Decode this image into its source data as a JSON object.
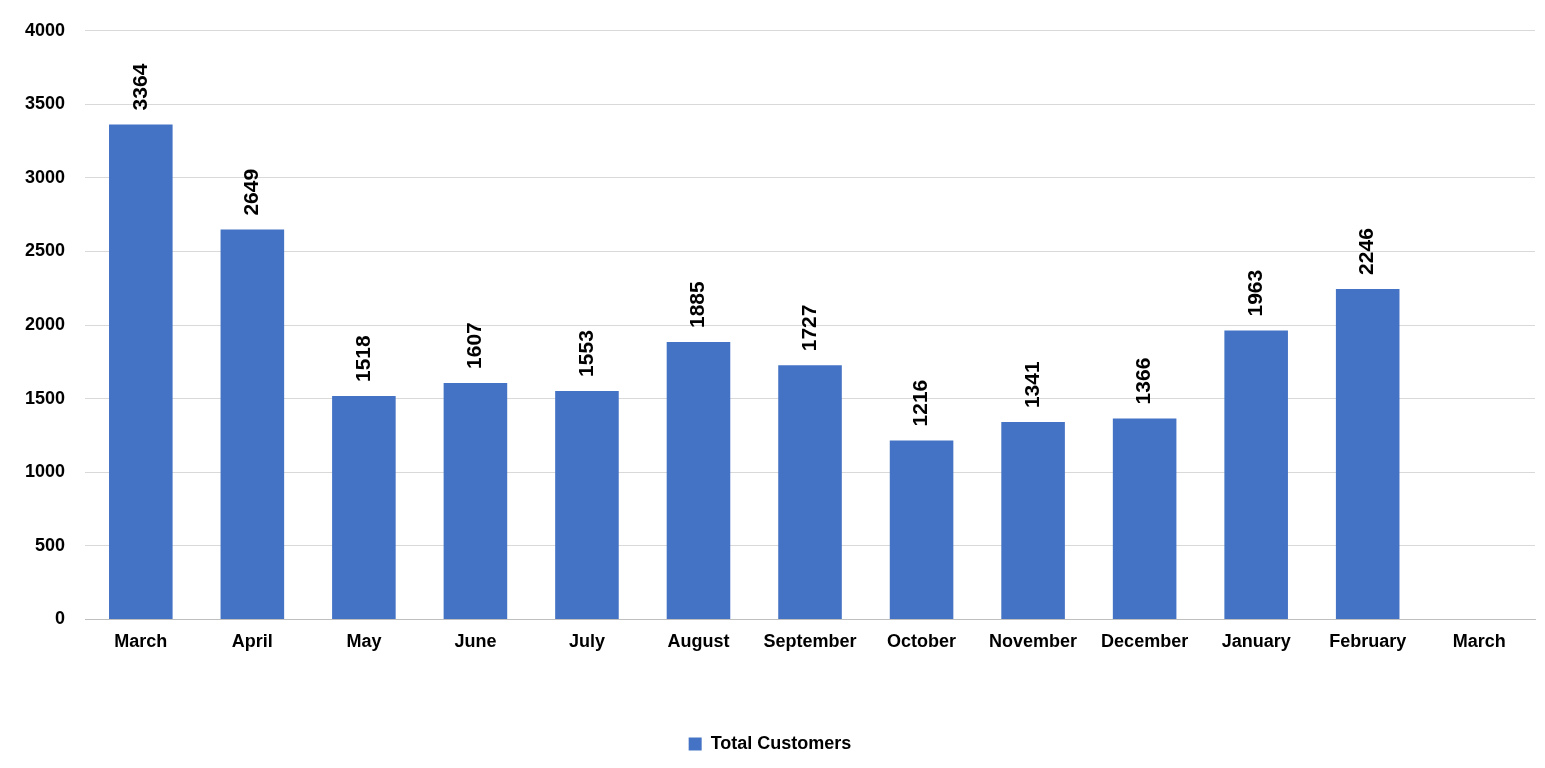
{
  "chart_data": {
    "type": "bar",
    "categories": [
      "March",
      "April",
      "May",
      "June",
      "July",
      "August",
      "September",
      "October",
      "November",
      "December",
      "January",
      "February",
      "March"
    ],
    "series": [
      {
        "name": "Total Customers",
        "color": "#4472c4",
        "values": [
          3364,
          2649,
          1518,
          1607,
          1553,
          1885,
          1727,
          1216,
          1341,
          1366,
          1963,
          2246,
          null
        ]
      }
    ],
    "ylim": [
      0,
      4000
    ],
    "yticks": [
      0,
      500,
      1000,
      1500,
      2000,
      2500,
      3000,
      3500,
      4000
    ],
    "grid": "y",
    "legend": "bottom",
    "data_labels": true
  }
}
